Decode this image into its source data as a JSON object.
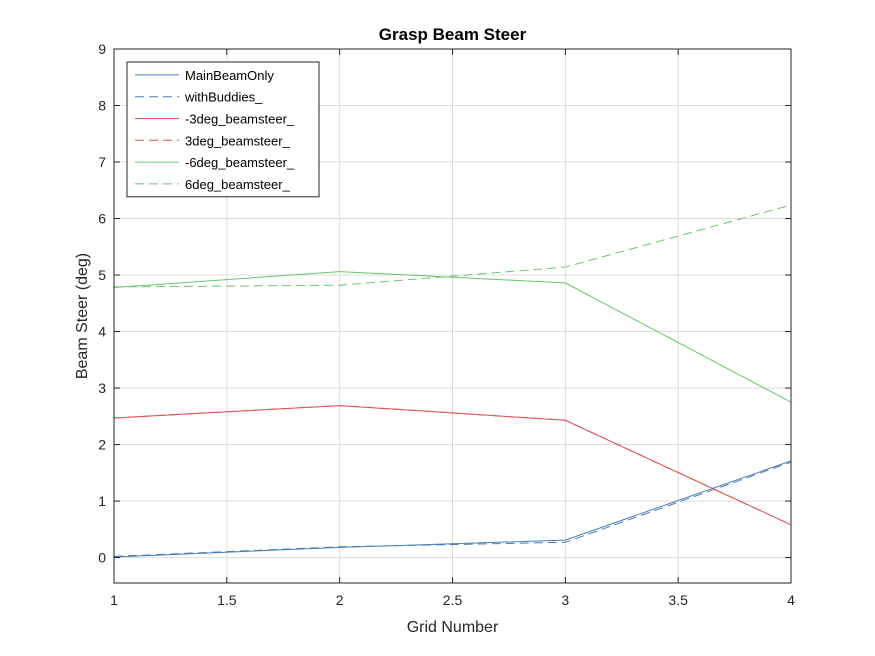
{
  "chart_data": {
    "type": "line",
    "title": "Grasp Beam Steer",
    "xlabel": "Grid Number",
    "ylabel": "Beam Steer (deg)",
    "xlim": [
      1,
      4
    ],
    "ylim": [
      -0.45,
      9
    ],
    "xticks": [
      1,
      1.5,
      2,
      2.5,
      3,
      3.5,
      4
    ],
    "xtick_labels": [
      "1",
      "1.5",
      "2",
      "2.5",
      "3",
      "3.5",
      "4"
    ],
    "yticks": [
      0,
      1,
      2,
      3,
      4,
      5,
      6,
      7,
      8,
      9
    ],
    "ytick_labels": [
      "0",
      "1",
      "2",
      "3",
      "4",
      "5",
      "6",
      "7",
      "8",
      "9"
    ],
    "grid": true,
    "legend_position": "top-left",
    "x": [
      1,
      2,
      3,
      4
    ],
    "series": [
      {
        "name": "MainBeamOnly",
        "values": [
          0.01,
          0.18,
          0.31,
          1.71
        ],
        "color": "#4a7fb5",
        "dash": "solid"
      },
      {
        "name": "withBuddies_",
        "values": [
          0.02,
          0.19,
          0.27,
          1.69
        ],
        "color": "#4a7fb5",
        "dash": "dashed"
      },
      {
        "name": "-3deg_beamsteer_",
        "values": [
          2.47,
          2.69,
          2.43,
          0.58
        ],
        "color": "#e05050",
        "dash": "solid"
      },
      {
        "name": "3deg_beamsteer_",
        "values": [
          2.47,
          2.69,
          2.43,
          0.58
        ],
        "color": "#e05050",
        "dash": "dashed"
      },
      {
        "name": "-6deg_beamsteer_",
        "values": [
          4.78,
          5.06,
          4.86,
          2.75
        ],
        "color": "#6cc46c",
        "dash": "solid"
      },
      {
        "name": "6deg_beamsteer_",
        "values": [
          4.79,
          4.82,
          5.14,
          6.24
        ],
        "color": "#6cc46c",
        "dash": "dashed"
      }
    ]
  }
}
